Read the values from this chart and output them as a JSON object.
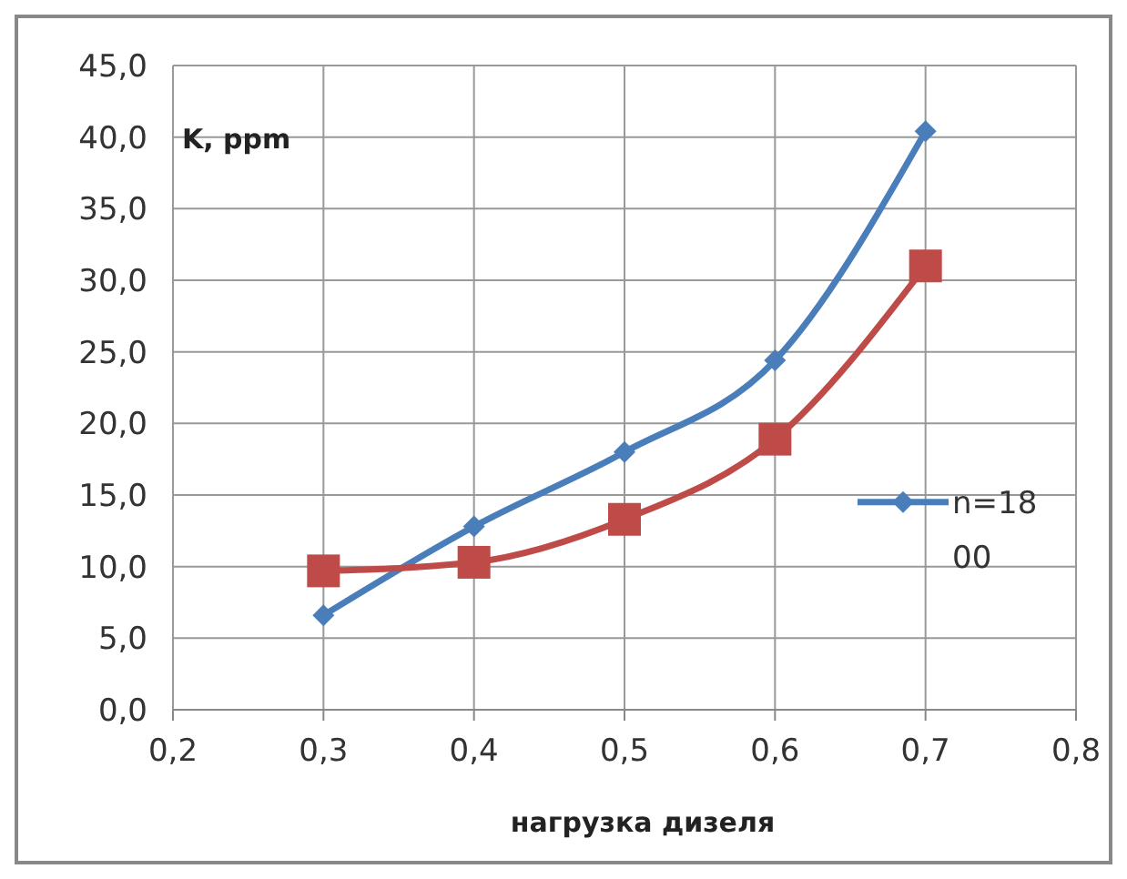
{
  "chart_data": {
    "type": "line",
    "xlabel": "нагрузка дизеля",
    "ylabel": "K, ppm",
    "x": [
      0.3,
      0.4,
      0.5,
      0.6,
      0.7
    ],
    "series": [
      {
        "name": "n=1800",
        "color": "#4a7ebb",
        "marker": "diamond",
        "values": [
          6.6,
          12.8,
          18.0,
          24.4,
          40.4
        ]
      },
      {
        "color": "#be4b48",
        "marker": "square",
        "values": [
          9.7,
          10.3,
          13.3,
          18.9,
          31.0
        ]
      }
    ],
    "xlim": [
      0.2,
      0.8
    ],
    "xticks": [
      {
        "value": 0.2,
        "label": "0,2"
      },
      {
        "value": 0.3,
        "label": "0,3"
      },
      {
        "value": 0.4,
        "label": "0,4"
      },
      {
        "value": 0.5,
        "label": "0,5"
      },
      {
        "value": 0.6,
        "label": "0,6"
      },
      {
        "value": 0.7,
        "label": "0,7"
      },
      {
        "value": 0.8,
        "label": "0,8"
      }
    ],
    "ylim": [
      0,
      45
    ],
    "yticks": [
      {
        "value": 0,
        "label": "0,0"
      },
      {
        "value": 5,
        "label": "5,0"
      },
      {
        "value": 10,
        "label": "10,0"
      },
      {
        "value": 15,
        "label": "15,0"
      },
      {
        "value": 20,
        "label": "20,0"
      },
      {
        "value": 25,
        "label": "25,0"
      },
      {
        "value": 30,
        "label": "30,0"
      },
      {
        "value": 35,
        "label": "35,0"
      },
      {
        "value": 40,
        "label": "40,0"
      },
      {
        "value": 45,
        "label": "45,0"
      }
    ],
    "grid": true,
    "legend": "right",
    "line_style": "solid"
  }
}
